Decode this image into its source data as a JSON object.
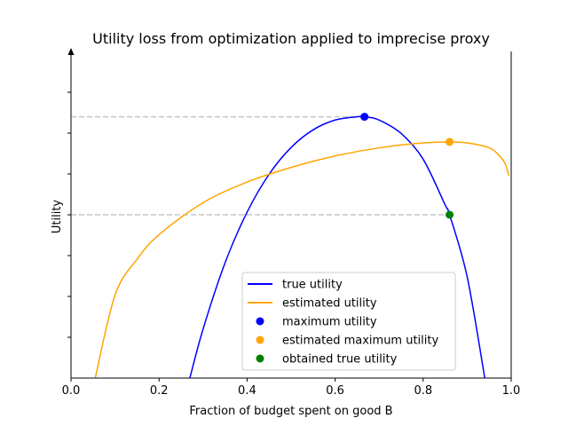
{
  "chart_data": {
    "type": "line",
    "title": "Utility loss from optimization applied to imprecise proxy",
    "xlabel": "Fraction of budget spent on good B",
    "ylabel": "Utility",
    "xlim": [
      0.0,
      1.0
    ],
    "ylim": [
      0.0,
      1.0
    ],
    "x_ticks": [
      0.0,
      0.2,
      0.4,
      0.6,
      0.8,
      1.0
    ],
    "x_tick_labels": [
      "0.0",
      "0.2",
      "0.4",
      "0.6",
      "0.8",
      "1.0"
    ],
    "y_ticks": [
      0.125,
      0.25,
      0.375,
      0.5,
      0.625,
      0.75,
      0.875
    ],
    "y_tick_labels_shown": false,
    "series": [
      {
        "name": "true utility",
        "kind": "line",
        "color": "#0000ff",
        "x": [
          0.27,
          0.3,
          0.35,
          0.4,
          0.45,
          0.5,
          0.55,
          0.6,
          0.65,
          0.6667,
          0.7,
          0.75,
          0.8,
          0.85,
          0.86,
          0.9,
          0.94
        ],
        "y": [
          0.0,
          0.15,
          0.353,
          0.508,
          0.624,
          0.706,
          0.76,
          0.79,
          0.8,
          0.8,
          0.79,
          0.749,
          0.67,
          0.53,
          0.5,
          0.31,
          0.0
        ]
      },
      {
        "name": "estimated utility",
        "kind": "line",
        "color": "#ffa500",
        "x": [
          0.055,
          0.1,
          0.15,
          0.2,
          0.3,
          0.4,
          0.5,
          0.6,
          0.7,
          0.8,
          0.86,
          0.9,
          0.95,
          0.97,
          0.985,
          0.995
        ],
        "y": [
          0.0,
          0.254,
          0.364,
          0.439,
          0.537,
          0.6,
          0.645,
          0.68,
          0.705,
          0.72,
          0.723,
          0.72,
          0.705,
          0.685,
          0.66,
          0.62
        ]
      },
      {
        "name": "maximum utility",
        "kind": "scatter",
        "color": "#0000ff",
        "x": [
          0.6667
        ],
        "y": [
          0.8
        ]
      },
      {
        "name": "estimated maximum utility",
        "kind": "scatter",
        "color": "#ffa500",
        "x": [
          0.86
        ],
        "y": [
          0.723
        ]
      },
      {
        "name": "obtained true utility",
        "kind": "scatter",
        "color": "#008000",
        "x": [
          0.86
        ],
        "y": [
          0.5
        ]
      }
    ],
    "reference_lines": [
      {
        "kind": "hline",
        "y": 0.8,
        "x_from": 0.0,
        "x_to": 0.6667,
        "style": "dashed",
        "color": "#c8c8c8"
      },
      {
        "kind": "hline",
        "y": 0.5,
        "x_from": 0.0,
        "x_to": 0.86,
        "style": "dashed",
        "color": "#c8c8c8"
      }
    ],
    "legend_position": "lower-right",
    "grid": false
  }
}
